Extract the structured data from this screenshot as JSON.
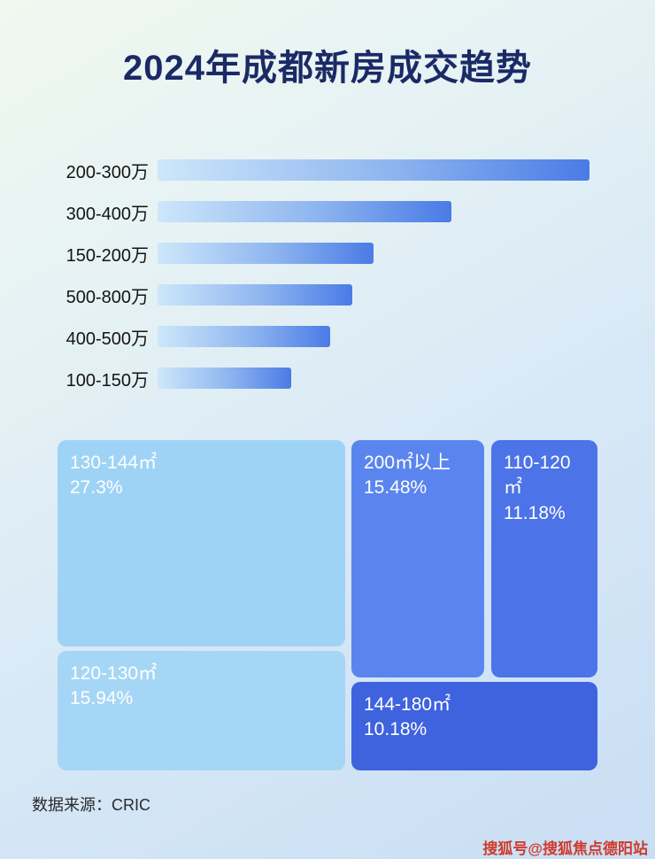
{
  "title": "2024年成都新房成交趋势",
  "source": "数据来源：CRIC",
  "watermark": "搜狐号@搜狐焦点德阳站",
  "colors": {
    "title_text": "#1b2a66",
    "bar_gradient_start": "#cde7fa",
    "bar_gradient_end": "#4a7be6",
    "watermark_text": "#cf3a2c"
  },
  "chart_data": [
    {
      "type": "bar",
      "orientation": "horizontal",
      "title": "2024年成都新房成交趋势",
      "categories": [
        "200-300万",
        "300-400万",
        "150-200万",
        "500-800万",
        "400-500万",
        "100-150万"
      ],
      "values": [
        100,
        68,
        50,
        45,
        40,
        31
      ],
      "value_note": "relative bar length, percent of longest bar (no numeric axis shown)",
      "xlabel": "",
      "ylabel": "",
      "grid": false,
      "legend": false
    },
    {
      "type": "treemap",
      "items": [
        {
          "label": "130-144㎡",
          "percent": "27.3%",
          "value": 27.3,
          "color": "#9ed3f6",
          "text_color": "#ffffff"
        },
        {
          "label": "200㎡以上",
          "percent": "15.48%",
          "value": 15.48,
          "color": "#5b85ee",
          "text_color": "#ffffff"
        },
        {
          "label": "110-120㎡",
          "percent": "11.18%",
          "value": 11.18,
          "color": "#4c73e8",
          "text_color": "#ffffff"
        },
        {
          "label": "120-130㎡",
          "percent": "15.94%",
          "value": 15.94,
          "color": "#a6d6f5",
          "text_color": "#ffffff"
        },
        {
          "label": "144-180㎡",
          "percent": "10.18%",
          "value": 10.18,
          "color": "#3f62de",
          "text_color": "#ffffff"
        }
      ]
    }
  ]
}
